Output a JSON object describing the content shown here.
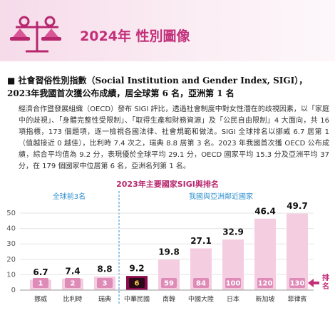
{
  "header": {
    "title": "2024年 性別圖像"
  },
  "heading": "社會習俗性別指數（Social Institution and Gender Index, SIGI），2023年我國首次獲公布成績，居全球第 6 名，亞洲第 1 名",
  "paragraph": "經濟合作暨發展組織（OECD）發布 SIGI 評比，透過社會制度中對女性潛在的歧視因素，以「家庭中的歧視」、「身體完整性受限制」、「取得生產和財務資源」及「公民自由限制」4 大面向，共 16 項指標，173 個題項，逐一檢視各國法律、社會規範和做法。SIGI 全球排名以挪威 6.7 居第 1（值越接近 0 越佳），比利時 7.4 次之，瑞典 8.8 居第 3 名。2023 年我國首次獲 OECD 公布成績，綜合平均值為 9.2 分，表現優於全球平均 29.1 分，OECD 國家平均 15.3 分及亞洲平均 37 分，在 179 個國家中位居第 6 名，亞洲名列第 1 名。",
  "chart_data": {
    "type": "bar",
    "title": "2023年主要國家SIGI與排名",
    "group_labels": [
      "全球前3名",
      "我國與亞洲鄰近國家"
    ],
    "categories": [
      "挪威",
      "比利時",
      "瑞典",
      "中華民國",
      "南韓",
      "中國大陸",
      "日本",
      "新加坡",
      "菲律賓"
    ],
    "values": [
      6.7,
      7.4,
      8.8,
      9.2,
      19.8,
      27.1,
      32.9,
      46.4,
      49.7
    ],
    "ranks": [
      1,
      2,
      3,
      6,
      59,
      84,
      100,
      120,
      130
    ],
    "rank_legend": "排名",
    "colors": [
      "#f5cde1",
      "#f5cde1",
      "#f5cde1",
      "#8a0c4c",
      "#f5cde1",
      "#f5cde1",
      "#f5cde1",
      "#f5cde1",
      "#f5cde1"
    ],
    "ylim": [
      0,
      50
    ],
    "yticks": [
      0,
      10,
      20,
      30,
      40,
      50
    ],
    "grid": true
  }
}
